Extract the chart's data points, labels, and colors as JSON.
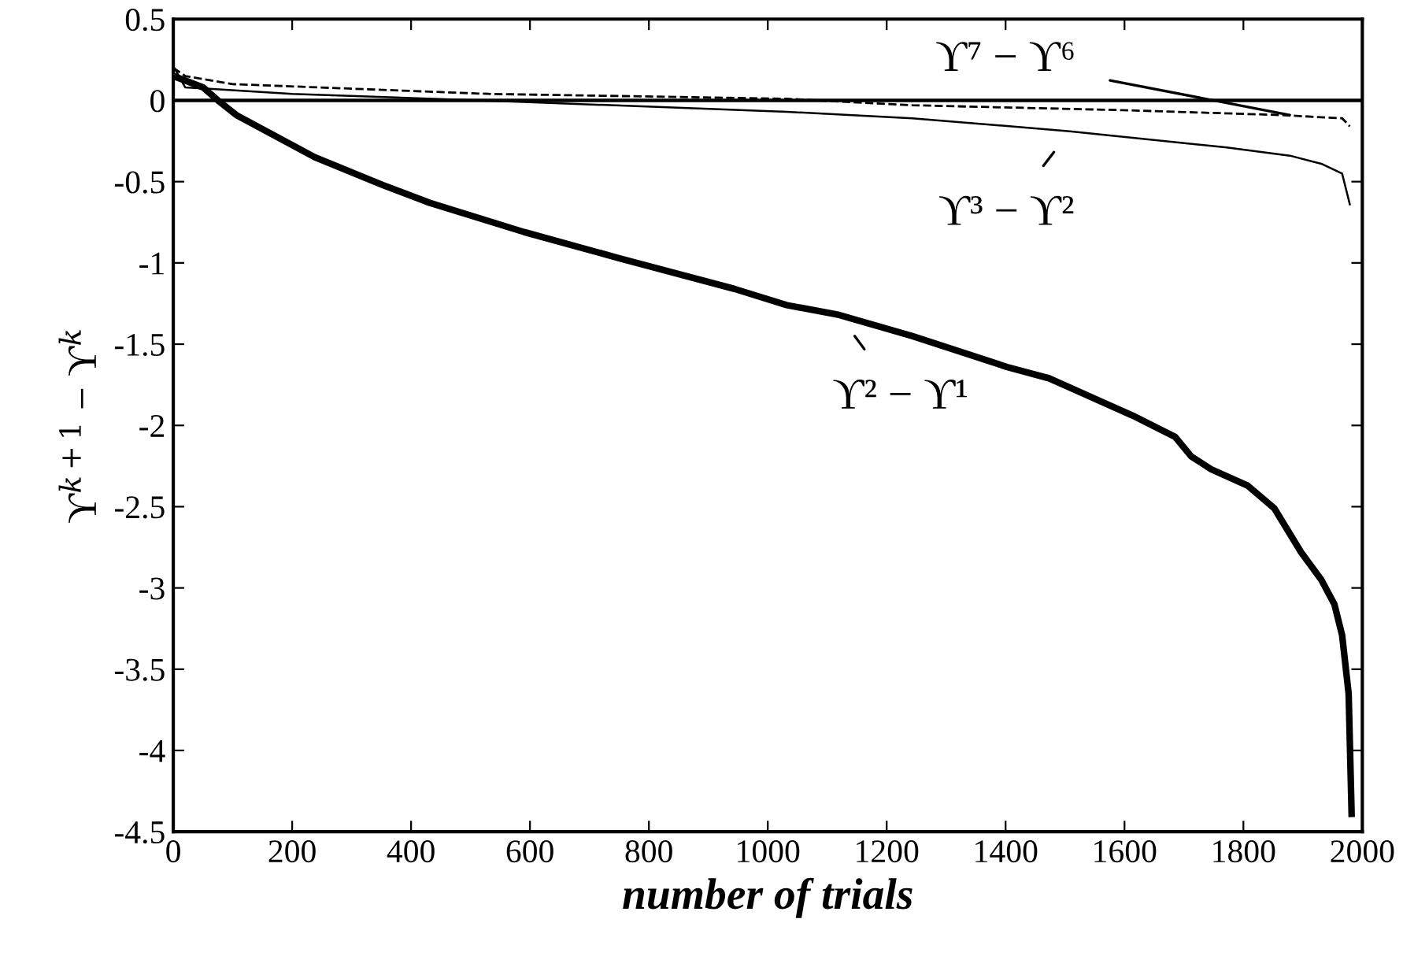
{
  "chart_data": {
    "type": "line",
    "xlabel": "number of trials",
    "ylabel": "ϒ$^{k+1}$ − ϒ$^{k}$",
    "xlim": [
      0,
      2000
    ],
    "ylim": [
      -4.5,
      0.5
    ],
    "xticks": [
      0,
      200,
      400,
      600,
      800,
      1000,
      1200,
      1400,
      1600,
      1800,
      2000
    ],
    "yticks": [
      0.5,
      0,
      -0.5,
      -1,
      -1.5,
      -2,
      -2.5,
      -3,
      -3.5,
      -4,
      -4.5
    ],
    "grid": false,
    "marker": "none",
    "ref_lines": [
      {
        "axis": "y",
        "value": 0,
        "color": "#000000",
        "line_style": "solid"
      }
    ],
    "series": [
      {
        "color": "#000000",
        "line_style": "solid",
        "x": [
          0,
          50,
          75,
          106,
          238,
          352,
          431,
          590,
          749,
          944,
          1032,
          1120,
          1243,
          1402,
          1473,
          1614,
          1685,
          1712,
          1746,
          1807,
          1852,
          1897,
          1931,
          1953,
          1966,
          1977,
          1982
        ],
        "values": [
          0.15,
          0.08,
          0,
          -0.09,
          -0.35,
          -0.52,
          -0.63,
          -0.81,
          -0.97,
          -1.16,
          -1.26,
          -1.32,
          -1.45,
          -1.64,
          -1.71,
          -1.94,
          -2.07,
          -2.19,
          -2.27,
          -2.37,
          -2.51,
          -2.78,
          -2.95,
          -3.1,
          -3.29,
          -3.65,
          -4.39
        ]
      },
      {
        "color": "#000000",
        "line_style": "solid",
        "x": [
          0,
          20,
          200,
          590,
          1032,
          1243,
          1508,
          1772,
          1878,
          1931,
          1966,
          1979
        ],
        "values": [
          0.21,
          0.08,
          0.04,
          -0.01,
          -0.07,
          -0.11,
          -0.19,
          -0.29,
          -0.34,
          -0.39,
          -0.45,
          -0.64
        ]
      },
      {
        "color": "#000000",
        "line_style": "dashed",
        "x": [
          0,
          20,
          100,
          529,
          1032,
          1243,
          1596,
          1861,
          1966,
          1979
        ],
        "values": [
          0.2,
          0.15,
          0.1,
          0.04,
          0.01,
          -0.03,
          -0.06,
          -0.09,
          -0.11,
          -0.16
        ]
      }
    ],
    "annotations": [
      {
        "text": "ϒ⁷ − ϒ⁶",
        "x": 1878,
        "y": -0.09
      },
      {
        "text": "ϒ³ − ϒ²",
        "x": 1508,
        "y": -0.19
      },
      {
        "text": "ϒ² − ϒ¹",
        "x": 1120,
        "y": -1.32
      }
    ]
  }
}
